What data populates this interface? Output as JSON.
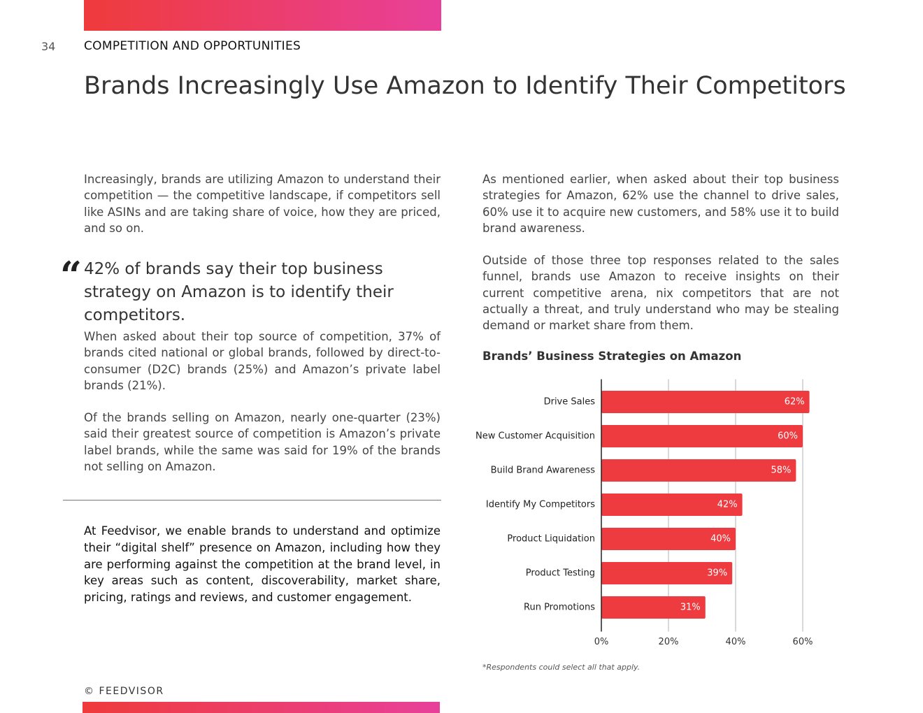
{
  "header": {
    "page_number": "34",
    "section": "COMPETITION AND OPPORTUNITIES",
    "title": "Brands Increasingly Use Amazon to Identify Their Competitors"
  },
  "left_column": {
    "intro": "Increasingly, brands are utilizing Amazon to understand their competition — the competitive landscape, if competitors sell like ASINs and are taking share of voice, how they are priced, and so on.",
    "quote": "42% of brands say their top business strategy on Amazon is to identify their competitors.",
    "paragraphs": [
      "When asked about their top source of competition, 37% of brands cited national or global brands, followed by direct-to-consumer (D2C) brands (25%) and Amazon’s private label brands (21%).",
      "Of the brands selling on Amazon, nearly one-quarter (23%) said their greatest source of competition is Amazon’s private label brands, while the same was said for 19% of the brands not selling on Amazon."
    ],
    "callout": "At Feedvisor, we enable brands to understand and optimize their “digital shelf” presence on Amazon, including how they are performing against the competition at the brand level, in key areas such as content, discoverability, market share, pricing, ratings and reviews, and customer engagement."
  },
  "right_column": {
    "paragraphs": [
      "As mentioned earlier, when asked about their top business strategies for Amazon, 62% use the channel to drive sales, 60% use it to acquire new customers, and 58% use it to build brand awareness.",
      "Outside of those three top responses related to the sales funnel, brands use Amazon to receive insights on their current competitive arena, nix competitors that are not actually a threat, and truly understand who may be stealing demand or market share from them."
    ]
  },
  "chart_data": {
    "type": "hbar",
    "title": "Brands’ Business Strategies on Amazon",
    "categories": [
      "Drive Sales",
      "New Customer Acquisition",
      "Build Brand Awareness",
      "Identify My Competitors",
      "Product Liquidation",
      "Product Testing",
      "Run Promotions"
    ],
    "values": [
      62,
      60,
      58,
      42,
      40,
      39,
      31
    ],
    "value_labels": [
      "62%",
      "60%",
      "58%",
      "42%",
      "40%",
      "39%",
      "31%"
    ],
    "color": "#ee3b3f",
    "xlim": [
      0,
      62.5
    ],
    "xticks": [
      {
        "value": 0,
        "label": "0%"
      },
      {
        "value": 20,
        "label": "20%"
      },
      {
        "value": 40,
        "label": "40%"
      },
      {
        "value": 60,
        "label": "60%"
      }
    ],
    "grid": true,
    "note": "*Respondents could select all that apply."
  },
  "footer": {
    "copyright": "© FEEDVISOR"
  }
}
